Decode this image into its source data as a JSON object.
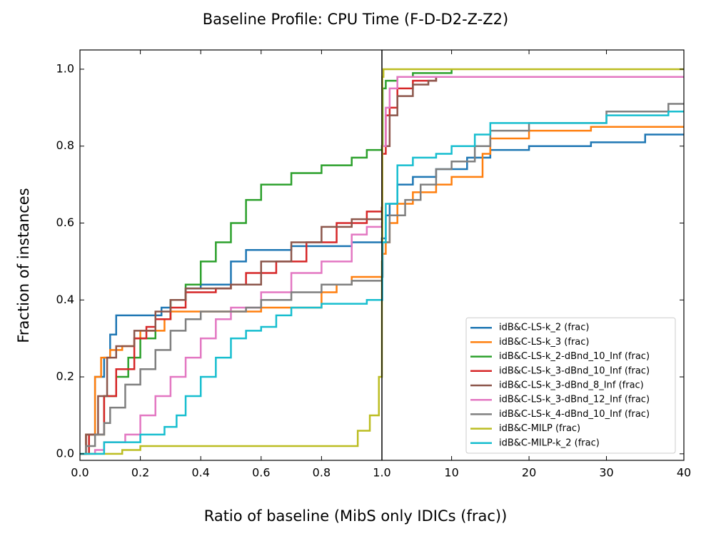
{
  "chart_data": {
    "type": "step-line",
    "title": "Baseline Profile: CPU Time (F-D-D2-Z-Z2)",
    "xlabel": "Ratio of baseline (MibS only IDICs (frac))",
    "ylabel": "Fraction of instances",
    "xlim": [
      0,
      40
    ],
    "xsplit": 1,
    "ylim": [
      -0.017,
      1.05
    ],
    "xticks": [
      {
        "value": 0,
        "label": "0.0"
      },
      0.2,
      0.4,
      0.6,
      0.8,
      {
        "value": 1,
        "label": "1.0"
      },
      10,
      20,
      30,
      40
    ],
    "yticks": [
      {
        "value": 0,
        "label": "0.0"
      },
      0.2,
      0.4,
      0.6,
      0.8,
      {
        "value": 1,
        "label": "1.0"
      }
    ],
    "legend": "lower right",
    "series": [
      {
        "name": "idB&C-LS-k_2 (frac)",
        "color": "#1f77b4",
        "x": [
          0,
          0.02,
          0.05,
          0.08,
          0.1,
          0.12,
          0.27,
          0.3,
          0.35,
          0.4,
          0.5,
          0.55,
          0.7,
          0.9,
          1.0,
          1.5,
          2,
          3,
          5,
          8,
          12,
          15,
          20,
          28,
          35,
          40
        ],
        "values": [
          0,
          0.05,
          0.2,
          0.25,
          0.31,
          0.36,
          0.38,
          0.4,
          0.43,
          0.44,
          0.5,
          0.53,
          0.54,
          0.55,
          0.56,
          0.62,
          0.65,
          0.7,
          0.72,
          0.74,
          0.77,
          0.79,
          0.8,
          0.81,
          0.83,
          0.83
        ]
      },
      {
        "name": "idB&C-LS-k_3 (frac)",
        "color": "#ff7f0e",
        "x": [
          0,
          0.02,
          0.05,
          0.07,
          0.1,
          0.14,
          0.18,
          0.2,
          0.28,
          0.3,
          0.6,
          0.8,
          0.85,
          0.9,
          1.0,
          1.05,
          1.5,
          2,
          3,
          5,
          8,
          10,
          14,
          15,
          20,
          28,
          40
        ],
        "values": [
          0,
          0.05,
          0.2,
          0.25,
          0.27,
          0.28,
          0.3,
          0.32,
          0.35,
          0.37,
          0.38,
          0.42,
          0.44,
          0.46,
          0.46,
          0.52,
          0.55,
          0.6,
          0.65,
          0.68,
          0.7,
          0.72,
          0.78,
          0.82,
          0.84,
          0.85,
          0.85
        ]
      },
      {
        "name": "idB&C-LS-k_2-dBnd_10_Inf (frac)",
        "color": "#2ca02c",
        "x": [
          0,
          0.03,
          0.08,
          0.12,
          0.16,
          0.2,
          0.25,
          0.3,
          0.35,
          0.4,
          0.45,
          0.5,
          0.55,
          0.6,
          0.7,
          0.8,
          0.9,
          0.95,
          1.0,
          1.1,
          1.5,
          3,
          5,
          10
        ],
        "values": [
          0,
          0.05,
          0.15,
          0.2,
          0.25,
          0.3,
          0.35,
          0.4,
          0.44,
          0.5,
          0.55,
          0.6,
          0.66,
          0.7,
          0.73,
          0.75,
          0.77,
          0.79,
          0.8,
          0.95,
          0.97,
          0.98,
          0.99,
          1.0
        ]
      },
      {
        "name": "idB&C-LS-k_3-dBnd_10_Inf (frac)",
        "color": "#d62728",
        "x": [
          0,
          0.03,
          0.08,
          0.12,
          0.18,
          0.22,
          0.25,
          0.3,
          0.35,
          0.45,
          0.5,
          0.55,
          0.65,
          0.75,
          0.85,
          0.95,
          1.0,
          1.05,
          1.5,
          2,
          3,
          5,
          8,
          40
        ],
        "values": [
          0,
          0.05,
          0.15,
          0.22,
          0.3,
          0.33,
          0.35,
          0.38,
          0.42,
          0.43,
          0.44,
          0.47,
          0.5,
          0.55,
          0.6,
          0.63,
          0.64,
          0.78,
          0.88,
          0.9,
          0.95,
          0.97,
          0.98,
          0.98
        ]
      },
      {
        "name": "idB&C-LS-k_3-dBnd_8_Inf (frac)",
        "color": "#8c564b",
        "x": [
          0,
          0.02,
          0.06,
          0.09,
          0.12,
          0.18,
          0.25,
          0.3,
          0.35,
          0.5,
          0.6,
          0.7,
          0.8,
          0.9,
          1.0,
          1.05,
          2,
          3,
          5,
          7,
          8
        ],
        "values": [
          0,
          0.05,
          0.15,
          0.25,
          0.28,
          0.32,
          0.37,
          0.4,
          0.43,
          0.44,
          0.5,
          0.55,
          0.59,
          0.61,
          0.64,
          0.8,
          0.88,
          0.93,
          0.96,
          0.97,
          0.98
        ]
      },
      {
        "name": "idB&C-LS-k_3-dBnd_12_Inf (frac)",
        "color": "#e377c2",
        "x": [
          0,
          0.05,
          0.08,
          0.15,
          0.2,
          0.25,
          0.3,
          0.35,
          0.4,
          0.45,
          0.5,
          0.6,
          0.7,
          0.8,
          0.9,
          0.95,
          1.0,
          1.05,
          1.5,
          2,
          3,
          40
        ],
        "values": [
          0,
          0.01,
          0.03,
          0.05,
          0.1,
          0.15,
          0.2,
          0.25,
          0.3,
          0.35,
          0.38,
          0.42,
          0.47,
          0.5,
          0.57,
          0.59,
          0.6,
          0.8,
          0.9,
          0.95,
          0.98,
          0.98
        ]
      },
      {
        "name": "idB&C-LS-k_4-dBnd_10_Inf (frac)",
        "color": "#7f7f7f",
        "x": [
          0,
          0.02,
          0.05,
          0.08,
          0.1,
          0.15,
          0.2,
          0.25,
          0.3,
          0.35,
          0.4,
          0.55,
          0.6,
          0.7,
          0.8,
          0.9,
          1.0,
          1.1,
          2,
          4,
          6,
          8,
          10,
          13,
          15,
          20,
          30,
          38,
          40
        ],
        "values": [
          0,
          0.02,
          0.05,
          0.08,
          0.12,
          0.18,
          0.22,
          0.27,
          0.32,
          0.35,
          0.37,
          0.38,
          0.4,
          0.42,
          0.44,
          0.45,
          0.46,
          0.55,
          0.62,
          0.66,
          0.7,
          0.74,
          0.76,
          0.8,
          0.84,
          0.86,
          0.89,
          0.91,
          0.91
        ]
      },
      {
        "name": "idB&C-MILP (frac)",
        "color": "#bcbd22",
        "x": [
          0,
          0.14,
          0.2,
          0.7,
          0.92,
          0.96,
          0.99,
          1.0,
          1.05,
          1.2,
          40
        ],
        "values": [
          0,
          0.01,
          0.02,
          0.02,
          0.06,
          0.1,
          0.2,
          0.5,
          0.98,
          1.0,
          1.0
        ]
      },
      {
        "name": "idB&C-MILP-k_2 (frac)",
        "color": "#17becf",
        "x": [
          0,
          0.08,
          0.2,
          0.28,
          0.32,
          0.35,
          0.4,
          0.45,
          0.5,
          0.55,
          0.6,
          0.65,
          0.7,
          0.8,
          0.95,
          1.05,
          1.5,
          3,
          5,
          8,
          10,
          13,
          15,
          30,
          38,
          40
        ],
        "values": [
          0,
          0.03,
          0.05,
          0.07,
          0.1,
          0.15,
          0.2,
          0.25,
          0.3,
          0.32,
          0.33,
          0.36,
          0.38,
          0.39,
          0.4,
          0.55,
          0.65,
          0.75,
          0.77,
          0.78,
          0.8,
          0.83,
          0.86,
          0.88,
          0.89,
          0.89
        ]
      }
    ]
  }
}
